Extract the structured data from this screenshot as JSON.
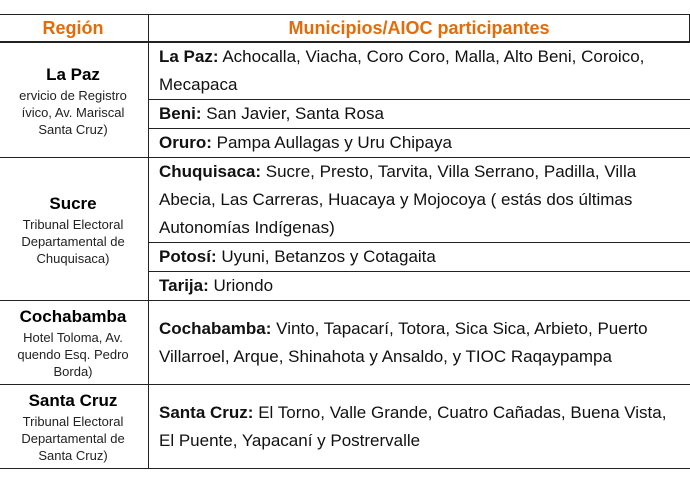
{
  "header": {
    "region": "Región",
    "municipios": "Municipios/AIOC participantes"
  },
  "rows": [
    {
      "region": "La Paz",
      "note": [
        "ervicio de Registro",
        "ívico, Av. Mariscal",
        "Santa Cruz)"
      ],
      "entries": [
        {
          "department": "La Paz:",
          "municipalities": "Achocalla, Viacha, Coro Coro, Malla, Alto Beni, Coroico, Mecapaca"
        },
        {
          "department": "Beni:",
          "municipalities": "San Javier, Santa Rosa"
        },
        {
          "department": "Oruro:",
          "municipalities": "Pampa Aullagas y Uru Chipaya"
        }
      ]
    },
    {
      "region": "Sucre",
      "note": [
        "Tribunal Electoral",
        "Departamental de",
        "Chuquisaca)"
      ],
      "entries": [
        {
          "department": "Chuquisaca:",
          "municipalities": "Sucre, Presto, Tarvita, Villa Serrano, Padilla, Villa Abecia, Las Carreras, Huacaya y Mojocoya ( estás dos últimas Autonomías Indígenas)"
        },
        {
          "department": "Potosí:",
          "municipalities": "Uyuni, Betanzos y Cotagaita"
        },
        {
          "department": "Tarija:",
          "municipalities": "Uriondo"
        }
      ]
    },
    {
      "region": "Cochabamba",
      "note": [
        "Hotel Toloma, Av.",
        "quendo Esq. Pedro",
        "Borda)"
      ],
      "entries": [
        {
          "department": "Cochabamba:",
          "municipalities": "Vinto, Tapacarí, Totora, Sica Sica, Arbieto, Puerto Villarroel, Arque, Shinahota y Ansaldo, y TIOC Raqaypampa"
        }
      ]
    },
    {
      "region": "Santa Cruz",
      "note": [
        "Tribunal Electoral",
        "Departamental de",
        "Santa Cruz)"
      ],
      "entries": [
        {
          "department": "Santa Cruz:",
          "municipalities": "El Torno, Valle Grande, Cuatro Cañadas, Buena Vista, El Puente, Yapacaní y Postrervalle"
        }
      ]
    }
  ]
}
